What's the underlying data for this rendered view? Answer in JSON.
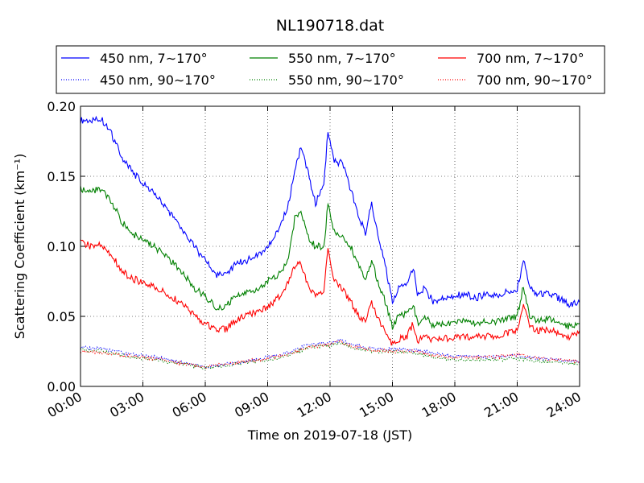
{
  "chart_data": {
    "type": "line",
    "title": "NL190718.dat",
    "xlabel": "Time on 2019-07-18 (JST)",
    "ylabel": "Scattering Coefficient (km⁻¹)",
    "x_unit": "hours",
    "xlim": [
      0,
      24
    ],
    "ylim": [
      0,
      0.2
    ],
    "x_ticks": [
      {
        "v": 0,
        "label": "00:00"
      },
      {
        "v": 3,
        "label": "03:00"
      },
      {
        "v": 6,
        "label": "06:00"
      },
      {
        "v": 9,
        "label": "09:00"
      },
      {
        "v": 12,
        "label": "12:00"
      },
      {
        "v": 15,
        "label": "15:00"
      },
      {
        "v": 18,
        "label": "18:00"
      },
      {
        "v": 21,
        "label": "21:00"
      },
      {
        "v": 24,
        "label": "24:00"
      }
    ],
    "y_ticks": [
      {
        "v": 0,
        "label": "0.00"
      },
      {
        "v": 0.05,
        "label": "0.05"
      },
      {
        "v": 0.1,
        "label": "0.10"
      },
      {
        "v": 0.15,
        "label": "0.15"
      },
      {
        "v": 0.2,
        "label": "0.20"
      }
    ],
    "grid": true,
    "legend_position": "above plot",
    "series": [
      {
        "name": "450 nm, 7∼170°",
        "color": "#0000ff",
        "style": "solid",
        "x": [
          0,
          0.5,
          1,
          1.5,
          2,
          2.5,
          3,
          3.5,
          4,
          4.5,
          5,
          5.5,
          6,
          6.5,
          7,
          7.5,
          8,
          8.5,
          9,
          9.5,
          10,
          10.3,
          10.6,
          11,
          11.3,
          11.7,
          11.9,
          12.2,
          12.6,
          13,
          13.4,
          13.7,
          14,
          14.3,
          14.6,
          15,
          15.3,
          15.7,
          16,
          16.2,
          16.5,
          17,
          17.5,
          18,
          18.5,
          19,
          19.5,
          20,
          20.5,
          21,
          21.3,
          21.6,
          22,
          22.5,
          23,
          23.5,
          24
        ],
        "y": [
          0.19,
          0.19,
          0.191,
          0.18,
          0.163,
          0.153,
          0.145,
          0.138,
          0.13,
          0.12,
          0.11,
          0.099,
          0.09,
          0.08,
          0.079,
          0.088,
          0.09,
          0.093,
          0.1,
          0.11,
          0.13,
          0.155,
          0.17,
          0.15,
          0.13,
          0.145,
          0.182,
          0.16,
          0.16,
          0.14,
          0.12,
          0.11,
          0.13,
          0.11,
          0.09,
          0.06,
          0.07,
          0.075,
          0.085,
          0.065,
          0.07,
          0.06,
          0.063,
          0.065,
          0.066,
          0.063,
          0.066,
          0.064,
          0.068,
          0.07,
          0.09,
          0.07,
          0.066,
          0.067,
          0.063,
          0.058,
          0.06
        ]
      },
      {
        "name": "550 nm, 7∼170°",
        "color": "#008000",
        "style": "solid",
        "x": [
          0,
          0.5,
          1,
          1.5,
          2,
          2.5,
          3,
          3.5,
          4,
          4.5,
          5,
          5.5,
          6,
          6.5,
          7,
          7.5,
          8,
          8.5,
          9,
          9.5,
          10,
          10.3,
          10.6,
          11,
          11.3,
          11.7,
          11.9,
          12.2,
          12.6,
          13,
          13.4,
          13.7,
          14,
          14.3,
          14.6,
          15,
          15.3,
          15.7,
          16,
          16.2,
          16.5,
          17,
          17.5,
          18,
          18.5,
          19,
          19.5,
          20,
          20.5,
          21,
          21.3,
          21.6,
          22,
          22.5,
          23,
          23.5,
          24
        ],
        "y": [
          0.141,
          0.14,
          0.14,
          0.132,
          0.117,
          0.109,
          0.105,
          0.1,
          0.095,
          0.087,
          0.079,
          0.07,
          0.064,
          0.057,
          0.057,
          0.065,
          0.067,
          0.07,
          0.075,
          0.08,
          0.09,
          0.12,
          0.125,
          0.105,
          0.1,
          0.1,
          0.13,
          0.11,
          0.108,
          0.1,
          0.085,
          0.075,
          0.09,
          0.075,
          0.063,
          0.042,
          0.05,
          0.052,
          0.058,
          0.045,
          0.05,
          0.043,
          0.045,
          0.046,
          0.047,
          0.045,
          0.047,
          0.046,
          0.049,
          0.05,
          0.072,
          0.05,
          0.047,
          0.048,
          0.045,
          0.043,
          0.045
        ]
      },
      {
        "name": "700 nm, 7∼170°",
        "color": "#ff0000",
        "style": "solid",
        "x": [
          0,
          0.5,
          1,
          1.5,
          2,
          2.5,
          3,
          3.5,
          4,
          4.5,
          5,
          5.5,
          6,
          6.5,
          7,
          7.5,
          8,
          8.5,
          9,
          9.5,
          10,
          10.3,
          10.6,
          11,
          11.3,
          11.7,
          11.9,
          12.2,
          12.6,
          13,
          13.4,
          13.7,
          14,
          14.3,
          14.6,
          15,
          15.3,
          15.7,
          16,
          16.2,
          16.5,
          17,
          17.5,
          18,
          18.5,
          19,
          19.5,
          20,
          20.5,
          21,
          21.3,
          21.6,
          22,
          22.5,
          23,
          23.5,
          24
        ],
        "y": [
          0.103,
          0.1,
          0.101,
          0.094,
          0.082,
          0.077,
          0.074,
          0.071,
          0.068,
          0.063,
          0.057,
          0.05,
          0.045,
          0.041,
          0.041,
          0.047,
          0.051,
          0.053,
          0.056,
          0.063,
          0.075,
          0.085,
          0.088,
          0.07,
          0.065,
          0.068,
          0.1,
          0.075,
          0.07,
          0.06,
          0.05,
          0.047,
          0.06,
          0.048,
          0.04,
          0.03,
          0.034,
          0.036,
          0.045,
          0.033,
          0.035,
          0.033,
          0.034,
          0.035,
          0.036,
          0.035,
          0.036,
          0.036,
          0.038,
          0.04,
          0.06,
          0.042,
          0.04,
          0.04,
          0.038,
          0.035,
          0.04
        ]
      },
      {
        "name": "450 nm, 90∼170°",
        "color": "#0000ff",
        "style": "dotted",
        "x": [
          0,
          1,
          2,
          3,
          4,
          5,
          6,
          7,
          8,
          9,
          10,
          11,
          12,
          12.5,
          13,
          14,
          15,
          16,
          17,
          18,
          19,
          20,
          21,
          22,
          23,
          24
        ],
        "y": [
          0.028,
          0.027,
          0.024,
          0.022,
          0.02,
          0.017,
          0.014,
          0.016,
          0.018,
          0.021,
          0.024,
          0.03,
          0.031,
          0.033,
          0.03,
          0.027,
          0.027,
          0.026,
          0.024,
          0.022,
          0.021,
          0.021,
          0.022,
          0.02,
          0.019,
          0.018
        ]
      },
      {
        "name": "550 nm, 90∼170°",
        "color": "#008000",
        "style": "dotted",
        "x": [
          0,
          1,
          2,
          3,
          4,
          5,
          6,
          7,
          8,
          9,
          10,
          11,
          12,
          12.5,
          13,
          14,
          15,
          16,
          17,
          18,
          19,
          20,
          21,
          22,
          23,
          24
        ],
        "y": [
          0.026,
          0.025,
          0.022,
          0.02,
          0.018,
          0.016,
          0.013,
          0.015,
          0.017,
          0.019,
          0.022,
          0.028,
          0.029,
          0.031,
          0.028,
          0.025,
          0.025,
          0.024,
          0.021,
          0.019,
          0.019,
          0.019,
          0.02,
          0.018,
          0.017,
          0.016
        ]
      },
      {
        "name": "700 nm, 90∼170°",
        "color": "#ff0000",
        "style": "dotted",
        "x": [
          0,
          1,
          2,
          3,
          4,
          5,
          6,
          7,
          8,
          9,
          10,
          11,
          12,
          12.5,
          13,
          14,
          15,
          16,
          17,
          18,
          19,
          20,
          21,
          22,
          23,
          24
        ],
        "y": [
          0.025,
          0.024,
          0.022,
          0.021,
          0.019,
          0.016,
          0.014,
          0.016,
          0.018,
          0.02,
          0.023,
          0.028,
          0.03,
          0.032,
          0.029,
          0.026,
          0.025,
          0.025,
          0.022,
          0.021,
          0.021,
          0.021,
          0.023,
          0.02,
          0.019,
          0.018
        ]
      }
    ]
  }
}
